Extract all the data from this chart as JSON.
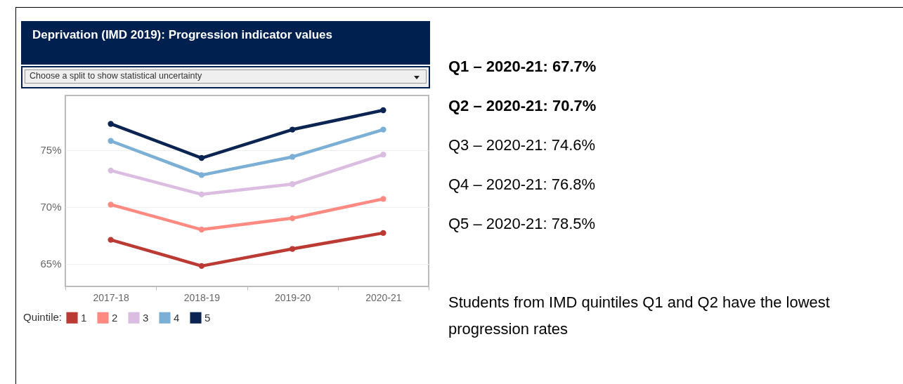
{
  "chart_data": {
    "type": "line",
    "title": "Deprivation (IMD 2019): Progression indicator values",
    "categories": [
      "2017-18",
      "2018-19",
      "2019-20",
      "2020-21"
    ],
    "series": [
      {
        "name": "1",
        "color": "#bb3a33",
        "values": [
          67.1,
          64.8,
          66.3,
          67.7
        ]
      },
      {
        "name": "2",
        "color": "#ff8a82",
        "values": [
          70.2,
          68.0,
          69.0,
          70.7
        ]
      },
      {
        "name": "3",
        "color": "#dabde1",
        "values": [
          73.2,
          71.1,
          72.0,
          74.6
        ]
      },
      {
        "name": "4",
        "color": "#7bafd6",
        "values": [
          75.8,
          72.8,
          74.4,
          76.8
        ]
      },
      {
        "name": "5",
        "color": "#0b2452",
        "values": [
          77.3,
          74.3,
          76.8,
          78.5
        ]
      }
    ],
    "legend_title": "Quintile:",
    "legend": "bottom left",
    "ylim": [
      63,
      79.8
    ],
    "yticks": [
      {
        "value": 65,
        "label": "65%"
      },
      {
        "value": 70,
        "label": "70%"
      },
      {
        "value": 75,
        "label": "75%"
      }
    ],
    "grid": "y",
    "marker": "circle",
    "line_style": "solid",
    "annotations": [
      "Choose a split to show statistical uncertainty",
      "Q1 – 2020-21: 67.7%",
      "Q2 – 2020-21: 70.7%",
      "Q3 – 2020-21: 74.6%",
      "Q4 – 2020-21: 76.8%",
      "Q5 – 2020-21: 78.5%",
      "Students from IMD quintiles Q1 and Q2 have the lowest progression rates"
    ]
  }
}
